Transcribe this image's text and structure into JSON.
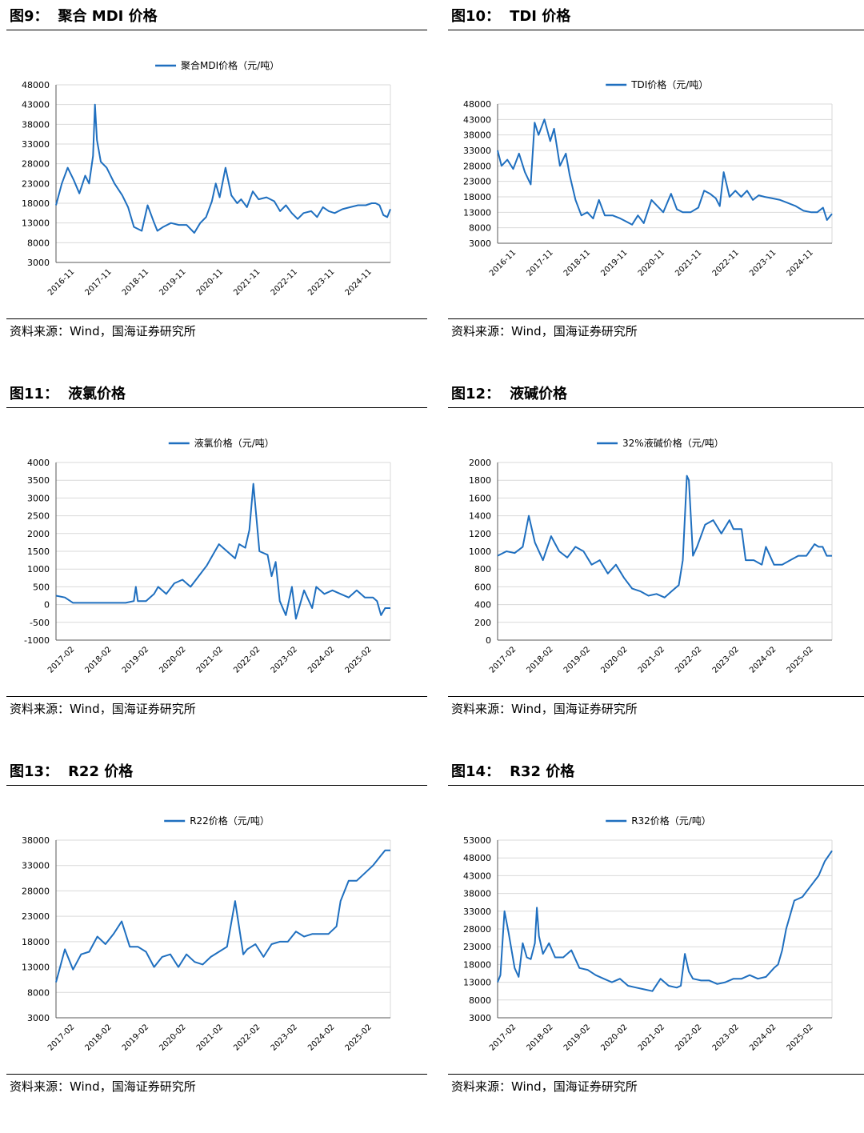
{
  "source_label": "资料来源：Wind，国海证券研究所",
  "colors": {
    "line": "#1f6fbf",
    "grid": "#d9d9d9",
    "axis": "#595959"
  },
  "panels": [
    {
      "number": "图9：",
      "title": "聚合 MDI 价格"
    },
    {
      "number": "图10：",
      "title": "TDI 价格"
    },
    {
      "number": "图11：",
      "title": "液氯价格"
    },
    {
      "number": "图12：",
      "title": "液碱价格"
    },
    {
      "number": "图13：",
      "title": "R22 价格"
    },
    {
      "number": "图14：",
      "title": "R32 价格"
    }
  ],
  "chart_data": [
    {
      "type": "line",
      "legend": "聚合MDI价格（元/吨）",
      "legend_position": "top",
      "ylim": [
        3000,
        48000
      ],
      "yticks": [
        3000,
        8000,
        13000,
        18000,
        23000,
        28000,
        33000,
        38000,
        43000,
        48000
      ],
      "xlim": [
        2016.75,
        2025.33
      ],
      "xtick_labels": [
        "2016-11",
        "2017-11",
        "2018-11",
        "2019-11",
        "2020-11",
        "2021-11",
        "2022-11",
        "2023-11",
        "2024-11"
      ],
      "series": [
        {
          "x": [
            2016.75,
            2016.9,
            2017.05,
            2017.2,
            2017.35,
            2017.5,
            2017.6,
            2017.7,
            2017.75,
            2017.8,
            2017.9,
            2018.05,
            2018.25,
            2018.45,
            2018.6,
            2018.75,
            2018.95,
            2019.1,
            2019.25,
            2019.35,
            2019.5,
            2019.7,
            2019.9,
            2020.1,
            2020.3,
            2020.45,
            2020.6,
            2020.75,
            2020.85,
            2020.95,
            2021.1,
            2021.25,
            2021.4,
            2021.5,
            2021.65,
            2021.8,
            2021.95,
            2022.15,
            2022.35,
            2022.5,
            2022.65,
            2022.8,
            2022.95,
            2023.1,
            2023.3,
            2023.45,
            2023.6,
            2023.75,
            2023.9,
            2024.1,
            2024.3,
            2024.5,
            2024.7,
            2024.85,
            2024.95,
            2025.05,
            2025.15,
            2025.25,
            2025.33
          ],
          "y": [
            17500,
            23000,
            27000,
            24000,
            20500,
            25000,
            23000,
            30000,
            43000,
            34000,
            28500,
            27000,
            23000,
            20000,
            17000,
            12000,
            11000,
            17500,
            13500,
            11000,
            12000,
            13000,
            12500,
            12500,
            10500,
            13000,
            14500,
            18500,
            23000,
            19500,
            27000,
            20000,
            18000,
            19000,
            17000,
            21000,
            19000,
            19500,
            18500,
            16000,
            17500,
            15500,
            14000,
            15500,
            16000,
            14500,
            17000,
            16000,
            15500,
            16500,
            17000,
            17500,
            17500,
            18000,
            18000,
            17500,
            15000,
            14500,
            16500
          ]
        }
      ]
    },
    {
      "type": "line",
      "legend": "TDI价格（元/吨）",
      "legend_position": "top",
      "ylim": [
        3000,
        48000
      ],
      "yticks": [
        3000,
        8000,
        13000,
        18000,
        23000,
        28000,
        33000,
        38000,
        43000,
        48000
      ],
      "xlim": [
        2016.75,
        2025.33
      ],
      "xtick_labels": [
        "2016-11",
        "2017-11",
        "2018-11",
        "2019-11",
        "2020-11",
        "2021-11",
        "2022-11",
        "2023-11",
        "2024-11"
      ],
      "series": [
        {
          "x": [
            2016.75,
            2016.85,
            2017.0,
            2017.15,
            2017.3,
            2017.45,
            2017.6,
            2017.7,
            2017.8,
            2017.95,
            2018.1,
            2018.2,
            2018.35,
            2018.5,
            2018.6,
            2018.75,
            2018.9,
            2019.05,
            2019.2,
            2019.35,
            2019.5,
            2019.7,
            2019.9,
            2020.05,
            2020.2,
            2020.35,
            2020.5,
            2020.7,
            2020.85,
            2021.0,
            2021.2,
            2021.35,
            2021.5,
            2021.7,
            2021.9,
            2022.05,
            2022.2,
            2022.35,
            2022.45,
            2022.55,
            2022.7,
            2022.85,
            2023.0,
            2023.15,
            2023.3,
            2023.45,
            2023.6,
            2023.8,
            2024.0,
            2024.2,
            2024.4,
            2024.6,
            2024.8,
            2024.95,
            2025.1,
            2025.2,
            2025.33
          ],
          "y": [
            33000,
            28000,
            30000,
            27000,
            32000,
            26000,
            22000,
            42000,
            38000,
            43000,
            36000,
            40000,
            28000,
            32000,
            25000,
            17000,
            12000,
            13000,
            11000,
            17000,
            12000,
            12000,
            11000,
            10000,
            9000,
            12000,
            9500,
            17000,
            15000,
            13000,
            19000,
            14000,
            13000,
            13000,
            14500,
            20000,
            19000,
            17500,
            15000,
            26000,
            18000,
            20000,
            18000,
            20000,
            17000,
            18500,
            18000,
            17500,
            17000,
            16000,
            15000,
            13500,
            13000,
            13000,
            14500,
            10500,
            12500
          ]
        }
      ]
    },
    {
      "type": "line",
      "legend": "液氯价格（元/吨）",
      "legend_position": "top",
      "ylim": [
        -1000,
        4000
      ],
      "yticks": [
        -1000,
        -500,
        0,
        500,
        1000,
        1500,
        2000,
        2500,
        3000,
        3500,
        4000
      ],
      "xlim": [
        2017.08,
        2025.33
      ],
      "xtick_labels": [
        "2017-02",
        "2018-02",
        "2019-02",
        "2020-02",
        "2021-02",
        "2022-02",
        "2023-02",
        "2024-02",
        "2025-02"
      ],
      "series": [
        {
          "x": [
            2017.08,
            2017.3,
            2017.5,
            2017.8,
            2018.1,
            2018.5,
            2018.8,
            2019.0,
            2019.05,
            2019.1,
            2019.3,
            2019.5,
            2019.6,
            2019.8,
            2020.0,
            2020.2,
            2020.4,
            2020.6,
            2020.8,
            2021.0,
            2021.1,
            2021.3,
            2021.5,
            2021.6,
            2021.75,
            2021.85,
            2021.95,
            2022.1,
            2022.3,
            2022.4,
            2022.5,
            2022.6,
            2022.75,
            2022.9,
            2023.0,
            2023.2,
            2023.4,
            2023.5,
            2023.7,
            2023.9,
            2024.1,
            2024.3,
            2024.5,
            2024.7,
            2024.9,
            2025.0,
            2025.1,
            2025.2,
            2025.33
          ],
          "y": [
            250,
            200,
            50,
            50,
            50,
            50,
            50,
            100,
            500,
            100,
            100,
            300,
            500,
            300,
            600,
            700,
            500,
            800,
            1100,
            1500,
            1700,
            1500,
            1300,
            1700,
            1600,
            2100,
            3400,
            1500,
            1400,
            800,
            1200,
            100,
            -300,
            500,
            -400,
            400,
            -100,
            500,
            300,
            400,
            300,
            200,
            400,
            200,
            200,
            100,
            -300,
            -100,
            -100
          ]
        }
      ]
    },
    {
      "type": "line",
      "legend": "32%液碱价格（元/吨）",
      "legend_position": "top",
      "ylim": [
        0,
        2000
      ],
      "yticks": [
        0,
        200,
        400,
        600,
        800,
        1000,
        1200,
        1400,
        1600,
        1800,
        2000
      ],
      "xlim": [
        2017.08,
        2025.33
      ],
      "xtick_labels": [
        "2017-02",
        "2018-02",
        "2019-02",
        "2020-02",
        "2021-02",
        "2022-02",
        "2023-02",
        "2024-02",
        "2025-02"
      ],
      "series": [
        {
          "x": [
            2017.08,
            2017.3,
            2017.5,
            2017.7,
            2017.85,
            2018.0,
            2018.2,
            2018.4,
            2018.6,
            2018.8,
            2019.0,
            2019.2,
            2019.4,
            2019.6,
            2019.8,
            2020.0,
            2020.2,
            2020.4,
            2020.6,
            2020.8,
            2021.0,
            2021.2,
            2021.4,
            2021.55,
            2021.65,
            2021.75,
            2021.8,
            2021.9,
            2022.0,
            2022.2,
            2022.4,
            2022.6,
            2022.8,
            2022.9,
            2023.1,
            2023.2,
            2023.4,
            2023.6,
            2023.7,
            2023.9,
            2024.1,
            2024.3,
            2024.5,
            2024.7,
            2024.9,
            2025.0,
            2025.1,
            2025.2,
            2025.33
          ],
          "y": [
            950,
            1000,
            980,
            1050,
            1400,
            1100,
            900,
            1170,
            1000,
            930,
            1050,
            1000,
            850,
            900,
            750,
            850,
            700,
            580,
            550,
            500,
            520,
            480,
            560,
            620,
            900,
            1850,
            1800,
            950,
            1050,
            1300,
            1350,
            1200,
            1350,
            1250,
            1250,
            900,
            900,
            850,
            1050,
            850,
            850,
            900,
            950,
            950,
            1080,
            1050,
            1050,
            950,
            950
          ]
        }
      ]
    },
    {
      "type": "line",
      "legend": "R22价格（元/吨）",
      "legend_position": "top",
      "ylim": [
        3000,
        38000
      ],
      "yticks": [
        3000,
        8000,
        13000,
        18000,
        23000,
        28000,
        33000,
        38000
      ],
      "xlim": [
        2017.08,
        2025.33
      ],
      "xtick_labels": [
        "2017-02",
        "2018-02",
        "2019-02",
        "2020-02",
        "2021-02",
        "2022-02",
        "2023-02",
        "2024-02",
        "2025-02"
      ],
      "series": [
        {
          "x": [
            2017.08,
            2017.3,
            2017.5,
            2017.7,
            2017.9,
            2018.1,
            2018.3,
            2018.5,
            2018.7,
            2018.9,
            2019.1,
            2019.3,
            2019.5,
            2019.7,
            2019.9,
            2020.1,
            2020.3,
            2020.5,
            2020.7,
            2020.9,
            2021.1,
            2021.3,
            2021.5,
            2021.7,
            2021.8,
            2021.9,
            2022.0,
            2022.2,
            2022.4,
            2022.6,
            2022.8,
            2023.0,
            2023.2,
            2023.4,
            2023.6,
            2023.8,
            2024.0,
            2024.1,
            2024.3,
            2024.5,
            2024.7,
            2024.9,
            2025.1,
            2025.2,
            2025.33
          ],
          "y": [
            10000,
            16500,
            12500,
            15500,
            16000,
            19000,
            17500,
            19500,
            22000,
            17000,
            17000,
            16000,
            13000,
            15000,
            15500,
            13000,
            15500,
            14000,
            13500,
            15000,
            16000,
            17000,
            26000,
            15500,
            16500,
            17000,
            17500,
            15000,
            17500,
            18000,
            18000,
            20000,
            19000,
            19500,
            19500,
            19500,
            21000,
            26000,
            30000,
            30000,
            31500,
            33000,
            35000,
            36000,
            36000
          ]
        }
      ]
    },
    {
      "type": "line",
      "legend": "R32价格（元/吨）",
      "legend_position": "top",
      "ylim": [
        3000,
        53000
      ],
      "yticks": [
        3000,
        8000,
        13000,
        18000,
        23000,
        28000,
        33000,
        38000,
        43000,
        48000,
        53000
      ],
      "xlim": [
        2017.08,
        2025.33
      ],
      "xtick_labels": [
        "2017-02",
        "2018-02",
        "2019-02",
        "2020-02",
        "2021-02",
        "2022-02",
        "2023-02",
        "2024-02",
        "2025-02"
      ],
      "series": [
        {
          "x": [
            2017.08,
            2017.15,
            2017.25,
            2017.35,
            2017.5,
            2017.6,
            2017.7,
            2017.8,
            2017.9,
            2018.0,
            2018.05,
            2018.1,
            2018.2,
            2018.35,
            2018.5,
            2018.7,
            2018.9,
            2019.1,
            2019.3,
            2019.5,
            2019.7,
            2019.9,
            2020.1,
            2020.3,
            2020.5,
            2020.7,
            2020.9,
            2021.1,
            2021.3,
            2021.5,
            2021.6,
            2021.7,
            2021.8,
            2021.9,
            2022.1,
            2022.3,
            2022.5,
            2022.7,
            2022.9,
            2023.1,
            2023.3,
            2023.5,
            2023.7,
            2023.9,
            2024.0,
            2024.1,
            2024.2,
            2024.4,
            2024.6,
            2024.8,
            2025.0,
            2025.15,
            2025.33
          ],
          "y": [
            13000,
            15000,
            33000,
            27000,
            17000,
            14500,
            24000,
            20000,
            19500,
            24000,
            34000,
            26000,
            21000,
            24000,
            20000,
            20000,
            22000,
            17000,
            16500,
            15000,
            14000,
            13000,
            14000,
            12000,
            11500,
            11000,
            10500,
            14000,
            12000,
            11500,
            12000,
            21000,
            16000,
            14000,
            13500,
            13500,
            12500,
            13000,
            14000,
            14000,
            15000,
            14000,
            14500,
            17000,
            18000,
            22000,
            28000,
            36000,
            37000,
            40000,
            43000,
            47000,
            50000
          ]
        }
      ]
    }
  ]
}
